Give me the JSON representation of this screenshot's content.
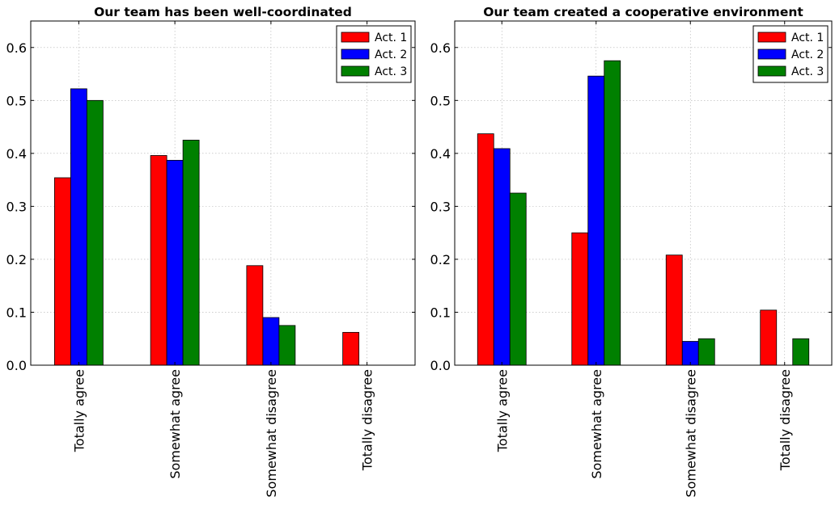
{
  "chart_data": [
    {
      "type": "bar",
      "title": "Our team has been well-coordinated",
      "categories": [
        "Totally agree",
        "Somewhat agree",
        "Somewhat disagree",
        "Totally disagree"
      ],
      "series": [
        {
          "name": "Act. 1",
          "color": "#ff0000",
          "values": [
            0.354,
            0.396,
            0.188,
            0.062
          ]
        },
        {
          "name": "Act. 2",
          "color": "#0000ff",
          "values": [
            0.522,
            0.387,
            0.09,
            0.0
          ]
        },
        {
          "name": "Act. 3",
          "color": "#008000",
          "values": [
            0.5,
            0.425,
            0.075,
            0.0
          ]
        }
      ],
      "ylim": [
        0,
        0.65
      ],
      "yticks": [
        "0.0",
        "0.1",
        "0.2",
        "0.3",
        "0.4",
        "0.5",
        "0.6"
      ],
      "grid": true,
      "legend_position": "top-right"
    },
    {
      "type": "bar",
      "title": "Our team created a cooperative environment",
      "categories": [
        "Totally agree",
        "Somewhat agree",
        "Somewhat disagree",
        "Totally disagree"
      ],
      "series": [
        {
          "name": "Act. 1",
          "color": "#ff0000",
          "values": [
            0.437,
            0.25,
            0.208,
            0.104
          ]
        },
        {
          "name": "Act. 2",
          "color": "#0000ff",
          "values": [
            0.409,
            0.546,
            0.045,
            0.0
          ]
        },
        {
          "name": "Act. 3",
          "color": "#008000",
          "values": [
            0.325,
            0.575,
            0.05,
            0.05
          ]
        }
      ],
      "ylim": [
        0,
        0.65
      ],
      "yticks": [
        "0.0",
        "0.1",
        "0.2",
        "0.3",
        "0.4",
        "0.5",
        "0.6"
      ],
      "grid": true,
      "legend_position": "top-right"
    }
  ]
}
